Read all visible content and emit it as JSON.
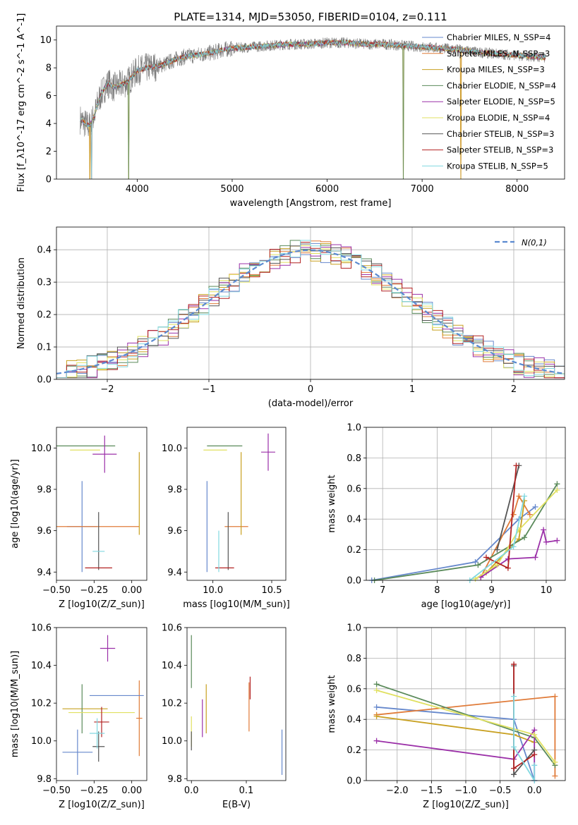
{
  "colors": [
    "#6688cc",
    "#e07b39",
    "#c8a020",
    "#5a8a5a",
    "#9b30a8",
    "#e0e060",
    "#555555",
    "#b22222",
    "#80d8e0"
  ],
  "chart_data": [
    {
      "id": "spectrum",
      "type": "line",
      "title": "PLATE=1314, MJD=53050, FIBERID=0104, z=0.111",
      "xlabel": "wavelength [Angstrom, rest frame]",
      "ylabel": "Flux [f_λ10^-17 erg cm^-2 s^-1 A^-1]",
      "xlim": [
        3150,
        8500
      ],
      "ylim": [
        0,
        11
      ],
      "xticks": [
        "4000",
        "5000",
        "6000",
        "7000",
        "8000"
      ],
      "yticks": [
        "0",
        "2",
        "4",
        "6",
        "8",
        "10"
      ],
      "legend": [
        "Chabrier MILES, N_SSP=4",
        "Salpeter MILES, N_SSP=3",
        "Kroupa MILES, N_SSP=3",
        "Chabrier ELODIE, N_SSP=4",
        "Salpeter ELODIE, N_SSP=5",
        "Kroupa ELODIE, N_SSP=4",
        "Chabrier STELIB, N_SSP=3",
        "Salpeter STELIB, N_SSP=3",
        "Kroupa STELIB, N_SSP=5"
      ],
      "legend_loc": "upper right",
      "data_x": [
        3400,
        3450,
        3500,
        3550,
        3600,
        3650,
        3700,
        3750,
        3800,
        3900,
        4000,
        4100,
        4200,
        4300,
        4400,
        4500,
        4600,
        4700,
        4800,
        4900,
        5000,
        5200,
        5400,
        5600,
        5800,
        6000,
        6200,
        6400,
        6600,
        6800,
        7000,
        7200,
        7400,
        7600,
        7800,
        8000,
        8200,
        8300
      ],
      "data_y": [
        4.3,
        4.0,
        3.8,
        4.6,
        5.8,
        6.5,
        6.9,
        6.6,
        6.7,
        7.0,
        7.8,
        8.0,
        8.1,
        8.3,
        8.6,
        8.8,
        8.9,
        9.0,
        9.1,
        9.3,
        9.4,
        9.5,
        9.6,
        9.7,
        9.7,
        9.8,
        9.8,
        9.7,
        9.7,
        9.6,
        9.5,
        9.4,
        9.3,
        9.1,
        9.0,
        8.9,
        8.8,
        8.7
      ]
    },
    {
      "id": "residuals",
      "type": "histogram",
      "xlabel": "(data-model)/error",
      "ylabel": "Normed distribution",
      "xlim": [
        -2.5,
        2.5
      ],
      "ylim": [
        0,
        0.47
      ],
      "xticks": [
        "−2",
        "−1",
        "0",
        "1",
        "2"
      ],
      "yticks": [
        "0.0",
        "0.1",
        "0.2",
        "0.3",
        "0.4"
      ],
      "bin_edges_start": -2.5,
      "bin_width": 0.1,
      "curve_label": "N(0,1)",
      "legend_loc": "upper right",
      "grid": true
    },
    {
      "id": "age_vs_Z",
      "type": "errorbar",
      "xlabel": "Z [log10(Z/Z_sun)]",
      "ylabel": "age  [log10(age/yr)]",
      "xlim": [
        -0.5,
        0.1
      ],
      "ylim": [
        9.36,
        10.1
      ],
      "xticks": [
        "−0.50",
        "−0.25",
        "0.00"
      ],
      "yticks": [
        "9.4",
        "9.6",
        "9.8",
        "10.0"
      ],
      "points": [
        {
          "x": -0.33,
          "y": 9.62,
          "xerr": 0.1,
          "yerr": 0.22
        },
        {
          "x": -0.23,
          "y": 9.62,
          "xerr": 0.28,
          "yerr": 0.0
        },
        {
          "x": 0.05,
          "y": 9.78,
          "xerr": 0.0,
          "yerr": 0.2
        },
        {
          "x": -0.31,
          "y": 10.01,
          "xerr": 0.2,
          "yerr": 0.0
        },
        {
          "x": -0.18,
          "y": 9.97,
          "xerr": 0.08,
          "yerr": 0.09
        },
        {
          "x": -0.31,
          "y": 9.99,
          "xerr": 0.1,
          "yerr": 0.0
        },
        {
          "x": -0.22,
          "y": 9.55,
          "xerr": 0.0,
          "yerr": 0.14
        },
        {
          "x": -0.22,
          "y": 9.42,
          "xerr": 0.09,
          "yerr": 0.0
        },
        {
          "x": -0.22,
          "y": 9.5,
          "xerr": 0.04,
          "yerr": 0.0
        }
      ]
    },
    {
      "id": "age_vs_mass",
      "type": "errorbar",
      "xlabel": "mass [log10(M/M_sun)]",
      "ylabel": "",
      "xlim": [
        9.78,
        10.62
      ],
      "ylim": [
        9.36,
        10.1
      ],
      "xticks": [
        "10.0",
        "10.5"
      ],
      "yticks": [
        "9.4",
        "9.6",
        "9.8",
        "10.0"
      ],
      "points": [
        {
          "x": 9.95,
          "y": 9.62,
          "xerr": 0.0,
          "yerr": 0.22
        },
        {
          "x": 10.2,
          "y": 9.62,
          "xerr": 0.1,
          "yerr": 0.0
        },
        {
          "x": 10.24,
          "y": 9.78,
          "xerr": 0.0,
          "yerr": 0.2
        },
        {
          "x": 10.1,
          "y": 10.01,
          "xerr": 0.15,
          "yerr": 0.0
        },
        {
          "x": 10.47,
          "y": 9.98,
          "xerr": 0.06,
          "yerr": 0.09
        },
        {
          "x": 10.02,
          "y": 9.99,
          "xerr": 0.1,
          "yerr": 0.0
        },
        {
          "x": 10.13,
          "y": 9.55,
          "xerr": 0.0,
          "yerr": 0.14
        },
        {
          "x": 10.1,
          "y": 9.42,
          "xerr": 0.08,
          "yerr": 0.0
        },
        {
          "x": 10.05,
          "y": 9.5,
          "xerr": 0.0,
          "yerr": 0.1
        }
      ]
    },
    {
      "id": "weight_vs_age",
      "type": "line",
      "xlabel": "age  [log10(age/yr)]",
      "ylabel": "mass weight",
      "xlim": [
        6.7,
        10.35
      ],
      "ylim": [
        0,
        1.0
      ],
      "xticks": [
        "7",
        "8",
        "9",
        "10"
      ],
      "yticks": [
        "0.0",
        "0.2",
        "0.4",
        "0.6",
        "0.8",
        "1.0"
      ],
      "grid": true,
      "series": [
        {
          "x": [
            6.8,
            8.7,
            9.5,
            9.8
          ],
          "y": [
            0.0,
            0.12,
            0.4,
            0.48
          ]
        },
        {
          "x": [
            8.8,
            9.4,
            9.5,
            9.7
          ],
          "y": [
            0.02,
            0.43,
            0.55,
            0.43
          ]
        },
        {
          "x": [
            8.9,
            9.5,
            9.6
          ],
          "y": [
            0.05,
            0.27,
            0.52
          ]
        },
        {
          "x": [
            6.85,
            8.75,
            9.6,
            10.2
          ],
          "y": [
            0.0,
            0.1,
            0.28,
            0.63
          ]
        },
        {
          "x": [
            8.8,
            9.3,
            9.8,
            9.95,
            10.0,
            10.2
          ],
          "y": [
            0.02,
            0.14,
            0.15,
            0.33,
            0.25,
            0.26
          ]
        },
        {
          "x": [
            8.7,
            9.1,
            9.5,
            10.2
          ],
          "y": [
            0.01,
            0.1,
            0.33,
            0.59
          ]
        },
        {
          "x": [
            9.1,
            9.5
          ],
          "y": [
            0.2,
            0.75
          ]
        },
        {
          "x": [
            8.9,
            9.3,
            9.45
          ],
          "y": [
            0.15,
            0.08,
            0.75
          ]
        },
        {
          "x": [
            8.6,
            9.4,
            9.6
          ],
          "y": [
            0.0,
            0.22,
            0.55
          ]
        }
      ]
    },
    {
      "id": "mass_vs_Z",
      "type": "errorbar",
      "xlabel": "Z [log10(Z/Z_sun)]",
      "ylabel": "mass [log10(M/M_sun)]",
      "xlim": [
        -0.5,
        0.1
      ],
      "ylim": [
        9.79,
        10.6
      ],
      "xticks": [
        "−0.50",
        "−0.25",
        "0.00"
      ],
      "yticks": [
        "9.8",
        "10.0",
        "10.2",
        "10.4",
        "10.6"
      ],
      "points": [
        {
          "x": -0.36,
          "y": 9.94,
          "xerr": 0.1,
          "yerr": 0.12
        },
        {
          "x": 0.05,
          "y": 10.12,
          "xerr": 0.02,
          "yerr": 0.2
        },
        {
          "x": -0.31,
          "y": 10.17,
          "xerr": 0.15,
          "yerr": 0.0
        },
        {
          "x": -0.33,
          "y": 10.17,
          "xerr": 0.0,
          "yerr": 0.13
        },
        {
          "x": -0.16,
          "y": 10.49,
          "xerr": 0.05,
          "yerr": 0.07
        },
        {
          "x": -0.2,
          "y": 10.15,
          "xerr": 0.22,
          "yerr": 0.0
        },
        {
          "x": -0.22,
          "y": 9.97,
          "xerr": 0.04,
          "yerr": 0.08
        },
        {
          "x": -0.2,
          "y": 10.1,
          "xerr": 0.05,
          "yerr": 0.08
        },
        {
          "x": -0.23,
          "y": 10.04,
          "xerr": 0.05,
          "yerr": 0.08
        },
        {
          "x": -0.1,
          "y": 10.24,
          "xerr": 0.18,
          "yerr": 0.0
        }
      ]
    },
    {
      "id": "mass_vs_ebv",
      "type": "errorbar",
      "xlabel": "E(B-V)",
      "ylabel": "",
      "xlim": [
        -0.008,
        0.172
      ],
      "ylim": [
        9.79,
        10.6
      ],
      "xticks": [
        "0.0",
        "0.1"
      ],
      "yticks": [
        "9.8",
        "10.0",
        "10.2",
        "10.4",
        "10.6"
      ],
      "points": [
        {
          "x": 0.165,
          "y": 9.94,
          "xerr": 0.0,
          "yerr": 0.12
        },
        {
          "x": 0.105,
          "y": 10.18,
          "xerr": 0.0,
          "yerr": 0.13
        },
        {
          "x": 0.027,
          "y": 10.17,
          "xerr": 0.0,
          "yerr": 0.13
        },
        {
          "x": 0.0,
          "y": 10.42,
          "xerr": 0.0,
          "yerr": 0.14
        },
        {
          "x": 0.02,
          "y": 10.12,
          "xerr": 0.0,
          "yerr": 0.1
        },
        {
          "x": 0.0,
          "y": 10.05,
          "xerr": 0.0,
          "yerr": 0.08
        },
        {
          "x": 0.0,
          "y": 10.0,
          "xerr": 0.0,
          "yerr": 0.05
        },
        {
          "x": 0.107,
          "y": 10.28,
          "xerr": 0.0,
          "yerr": 0.06
        }
      ]
    },
    {
      "id": "weight_vs_Z",
      "type": "line",
      "xlabel": "Z [log10(Z/Z_sun)]",
      "ylabel": "mass weight",
      "xlim": [
        -2.45,
        0.45
      ],
      "ylim": [
        0,
        1.0
      ],
      "xticks": [
        "−2.0",
        "−1.5",
        "−1.0",
        "−0.5",
        "0.0"
      ],
      "yticks": [
        "0.0",
        "0.2",
        "0.4",
        "0.6",
        "0.8",
        "1.0"
      ],
      "grid": true,
      "series": [
        {
          "x": [
            -2.3,
            -0.3,
            0.0
          ],
          "y": [
            0.48,
            0.4,
            0.0
          ]
        },
        {
          "x": [
            -2.3,
            0.3,
            0.3
          ],
          "y": [
            0.43,
            0.55,
            0.03
          ]
        },
        {
          "x": [
            -2.3,
            -0.3,
            0.0
          ],
          "y": [
            0.42,
            0.3,
            0.25
          ]
        },
        {
          "x": [
            -2.3,
            0.0,
            0.3
          ],
          "y": [
            0.63,
            0.28,
            0.1
          ]
        },
        {
          "x": [
            -2.3,
            -0.3,
            0.0,
            0.0
          ],
          "y": [
            0.26,
            0.14,
            0.33,
            0.0
          ]
        },
        {
          "x": [
            -2.3,
            0.0,
            0.3
          ],
          "y": [
            0.59,
            0.3,
            0.12
          ]
        },
        {
          "x": [
            -0.3,
            -0.3,
            0.0
          ],
          "y": [
            0.75,
            0.04,
            0.2
          ]
        },
        {
          "x": [
            -0.3,
            -0.3,
            0.0
          ],
          "y": [
            0.76,
            0.08,
            0.17
          ]
        },
        {
          "x": [
            -0.3,
            -0.3,
            0.0,
            0.0
          ],
          "y": [
            0.55,
            0.22,
            0.0,
            0.1
          ]
        }
      ]
    }
  ]
}
